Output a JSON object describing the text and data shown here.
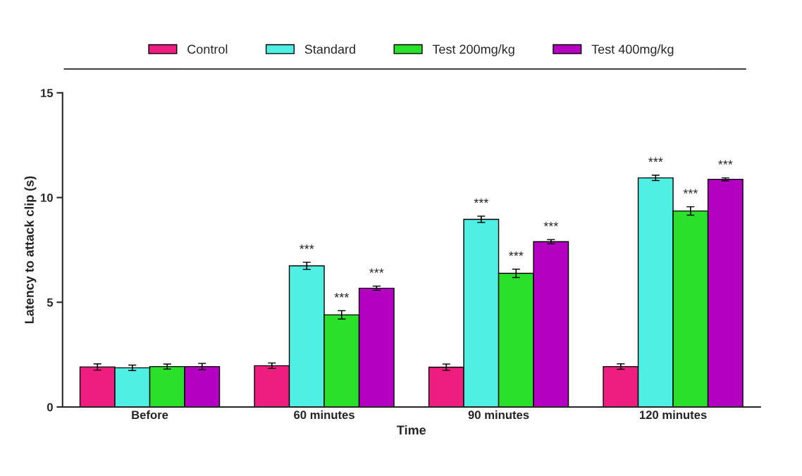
{
  "chart_data": {
    "type": "bar",
    "xlabel": "Time",
    "ylabel": "Latency to attack clip (s)",
    "categories": [
      "Before",
      "60 minutes",
      "90 minutes",
      "120 minutes"
    ],
    "series": [
      {
        "name": "Control",
        "color": "#ed1e80",
        "values": [
          1.91,
          1.97,
          1.9,
          1.93
        ],
        "errors": [
          0.15,
          0.13,
          0.15,
          0.13
        ]
      },
      {
        "name": "Standard",
        "color": "#50efe3",
        "values": [
          1.87,
          6.74,
          8.96,
          10.94
        ],
        "errors": [
          0.13,
          0.17,
          0.15,
          0.13
        ],
        "value_labels": [
          null,
          "***",
          "***",
          "***"
        ]
      },
      {
        "name": "Test 200mg/kg",
        "color": "#2ae02a",
        "values": [
          1.93,
          4.4,
          6.38,
          9.36
        ],
        "errors": [
          0.12,
          0.2,
          0.2,
          0.2
        ],
        "value_labels": [
          null,
          "***",
          "***",
          "***"
        ]
      },
      {
        "name": "Test 400mg/kg",
        "color": "#b400c0",
        "values": [
          1.93,
          5.67,
          7.89,
          10.87
        ],
        "errors": [
          0.15,
          0.1,
          0.1,
          0.07
        ],
        "value_labels": [
          null,
          "***",
          "***",
          "***"
        ]
      }
    ],
    "ylim": [
      0,
      15
    ],
    "yticks": [
      0,
      5,
      10,
      15
    ],
    "grid": false,
    "legend": "top"
  }
}
